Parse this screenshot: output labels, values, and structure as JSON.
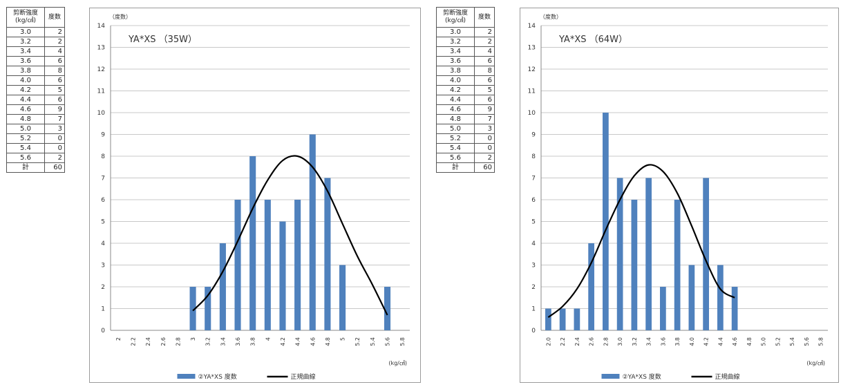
{
  "tables": [
    {
      "header": [
        "剪断強度\n(kg/㎠)",
        "度数"
      ],
      "rows": [
        [
          "3.0",
          "2"
        ],
        [
          "3.2",
          "2"
        ],
        [
          "3.4",
          "4"
        ],
        [
          "3.6",
          "6"
        ],
        [
          "3.8",
          "8"
        ],
        [
          "4.0",
          "6"
        ],
        [
          "4.2",
          "5"
        ],
        [
          "4.4",
          "6"
        ],
        [
          "4.6",
          "9"
        ],
        [
          "4.8",
          "7"
        ],
        [
          "5.0",
          "3"
        ],
        [
          "5.2",
          "0"
        ],
        [
          "5.4",
          "0"
        ],
        [
          "5.6",
          "2"
        ]
      ],
      "total": [
        "計",
        "60"
      ]
    },
    {
      "header": [
        "剪断強度\n(kg/㎠)",
        "度数"
      ],
      "rows": [
        [
          "3.0",
          "2"
        ],
        [
          "3.2",
          "2"
        ],
        [
          "3.4",
          "4"
        ],
        [
          "3.6",
          "6"
        ],
        [
          "3.8",
          "8"
        ],
        [
          "4.0",
          "6"
        ],
        [
          "4.2",
          "5"
        ],
        [
          "4.4",
          "6"
        ],
        [
          "4.6",
          "9"
        ],
        [
          "4.8",
          "7"
        ],
        [
          "5.0",
          "3"
        ],
        [
          "5.2",
          "0"
        ],
        [
          "5.4",
          "0"
        ],
        [
          "5.6",
          "2"
        ]
      ],
      "total": [
        "計",
        "60"
      ]
    }
  ],
  "chart_data": [
    {
      "type": "bar",
      "title": "YA*XS （35W）",
      "ylabel": "（度数）",
      "xlabel": "(kg/㎠)",
      "ylim": [
        0,
        14
      ],
      "yticks": [
        0,
        1,
        2,
        3,
        4,
        5,
        6,
        7,
        8,
        9,
        10,
        11,
        12,
        13,
        14
      ],
      "categories": [
        "2",
        "2.2",
        "2.4",
        "2.6",
        "2.8",
        "3",
        "3.2",
        "3.4",
        "3.6",
        "3.8",
        "4",
        "4.2",
        "4.4",
        "4.6",
        "4.8",
        "5",
        "5.2",
        "5.4",
        "5.6",
        "5.8"
      ],
      "series": [
        {
          "name": "②YA*XS 度数",
          "values": [
            0,
            0,
            0,
            0,
            0,
            2,
            2,
            4,
            6,
            8,
            6,
            5,
            6,
            9,
            7,
            3,
            0,
            0,
            2,
            0
          ],
          "color": "#4f81bd"
        },
        {
          "name": "正規曲線",
          "type": "line",
          "values": [
            null,
            null,
            null,
            null,
            null,
            0.9,
            1.6,
            2.7,
            4.1,
            5.6,
            6.9,
            7.8,
            8.0,
            7.5,
            6.4,
            4.9,
            3.4,
            2.1,
            0.7,
            null
          ],
          "color": "#000000"
        }
      ],
      "legend": "bottom",
      "grid": true
    },
    {
      "type": "bar",
      "title": "YA*XS （64W）",
      "ylabel": "（度数）",
      "xlabel": "(kg/㎠)",
      "ylim": [
        0,
        14
      ],
      "yticks": [
        0,
        1,
        2,
        3,
        4,
        5,
        6,
        7,
        8,
        9,
        10,
        11,
        12,
        13,
        14
      ],
      "categories": [
        "2.0",
        "2.2",
        "2.4",
        "2.6",
        "2.8",
        "3.0",
        "3.2",
        "3.4",
        "3.6",
        "3.8",
        "4.0",
        "4.2",
        "4.4",
        "4.6",
        "4.8",
        "5.0",
        "5.2",
        "5.4",
        "5.6",
        "5.8"
      ],
      "series": [
        {
          "name": "②YA*XS 度数",
          "values": [
            1,
            1,
            1,
            4,
            10,
            7,
            6,
            7,
            2,
            6,
            3,
            7,
            3,
            2,
            0,
            0,
            0,
            0,
            0,
            0
          ],
          "color": "#4f81bd"
        },
        {
          "name": "正規曲線",
          "type": "line",
          "values": [
            0.6,
            1.1,
            1.9,
            3.1,
            4.6,
            6.0,
            7.1,
            7.6,
            7.3,
            6.3,
            4.8,
            3.2,
            1.9,
            1.5,
            null,
            null,
            null,
            null,
            null,
            null
          ],
          "color": "#000000"
        }
      ],
      "legend": "bottom",
      "grid": true
    }
  ]
}
